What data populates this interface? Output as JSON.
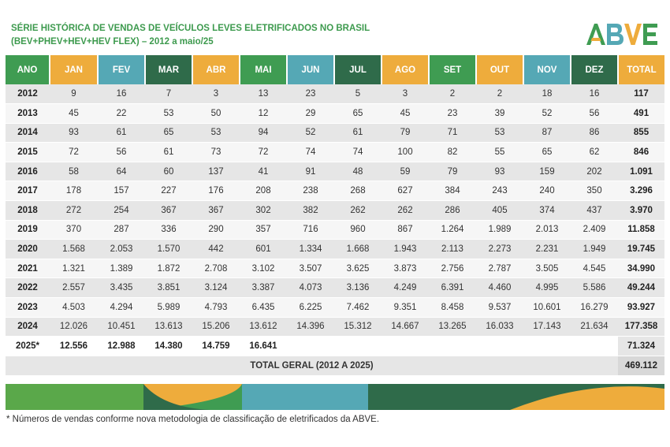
{
  "title": {
    "line1": "SÉRIE HISTÓRICA DE VENDAS DE VEÍCULOS LEVES ELETRIFICADOS NO BRASIL",
    "line2": "(BEV+PHEV+HEV+HEV FLEX) – 2012 a maio/25"
  },
  "logo": {
    "text": "ABVE"
  },
  "colors": {
    "green": "#3f9c52",
    "orange": "#eeac3c",
    "blue": "#55a8b5",
    "dark_green": "#2f6b4a",
    "title_green": "#3d9a4e"
  },
  "header": {
    "ano": "ANO",
    "months": [
      "JAN",
      "FEV",
      "MAR",
      "ABR",
      "MAI",
      "JUN",
      "JUL",
      "AGO",
      "SET",
      "OUT",
      "NOV",
      "DEZ"
    ],
    "total": "TOTAL"
  },
  "rows": [
    {
      "year": "2012",
      "values": [
        "9",
        "16",
        "7",
        "3",
        "13",
        "23",
        "5",
        "3",
        "2",
        "2",
        "18",
        "16"
      ],
      "total": "117"
    },
    {
      "year": "2013",
      "values": [
        "45",
        "22",
        "53",
        "50",
        "12",
        "29",
        "65",
        "45",
        "23",
        "39",
        "52",
        "56"
      ],
      "total": "491"
    },
    {
      "year": "2014",
      "values": [
        "93",
        "61",
        "65",
        "53",
        "94",
        "52",
        "61",
        "79",
        "71",
        "53",
        "87",
        "86"
      ],
      "total": "855"
    },
    {
      "year": "2015",
      "values": [
        "72",
        "56",
        "61",
        "73",
        "72",
        "74",
        "74",
        "100",
        "82",
        "55",
        "65",
        "62"
      ],
      "total": "846"
    },
    {
      "year": "2016",
      "values": [
        "58",
        "64",
        "60",
        "137",
        "41",
        "91",
        "48",
        "59",
        "79",
        "93",
        "159",
        "202"
      ],
      "total": "1.091"
    },
    {
      "year": "2017",
      "values": [
        "178",
        "157",
        "227",
        "176",
        "208",
        "238",
        "268",
        "627",
        "384",
        "243",
        "240",
        "350"
      ],
      "total": "3.296"
    },
    {
      "year": "2018",
      "values": [
        "272",
        "254",
        "367",
        "367",
        "302",
        "382",
        "262",
        "262",
        "286",
        "405",
        "374",
        "437"
      ],
      "total": "3.970"
    },
    {
      "year": "2019",
      "values": [
        "370",
        "287",
        "336",
        "290",
        "357",
        "716",
        "960",
        "867",
        "1.264",
        "1.989",
        "2.013",
        "2.409"
      ],
      "total": "11.858"
    },
    {
      "year": "2020",
      "values": [
        "1.568",
        "2.053",
        "1.570",
        "442",
        "601",
        "1.334",
        "1.668",
        "1.943",
        "2.113",
        "2.273",
        "2.231",
        "1.949"
      ],
      "total": "19.745"
    },
    {
      "year": "2021",
      "values": [
        "1.321",
        "1.389",
        "1.872",
        "2.708",
        "3.102",
        "3.507",
        "3.625",
        "3.873",
        "2.756",
        "2.787",
        "3.505",
        "4.545"
      ],
      "total": "34.990"
    },
    {
      "year": "2022",
      "values": [
        "2.557",
        "3.435",
        "3.851",
        "3.124",
        "3.387",
        "4.073",
        "3.136",
        "4.249",
        "6.391",
        "4.460",
        "4.995",
        "5.586"
      ],
      "total": "49.244"
    },
    {
      "year": "2023",
      "values": [
        "4.503",
        "4.294",
        "5.989",
        "4.793",
        "6.435",
        "6.225",
        "7.462",
        "9.351",
        "8.458",
        "9.537",
        "10.601",
        "16.279"
      ],
      "total": "93.927"
    },
    {
      "year": "2024",
      "values": [
        "12.026",
        "10.451",
        "13.613",
        "15.206",
        "13.612",
        "14.396",
        "15.312",
        "14.667",
        "13.265",
        "16.033",
        "17.143",
        "21.634"
      ],
      "total": "177.358"
    },
    {
      "year": "2025*",
      "values": [
        "12.556",
        "12.988",
        "14.380",
        "14.759",
        "16.641",
        "",
        "",
        "",
        "",
        "",
        "",
        ""
      ],
      "total": "71.324"
    }
  ],
  "grand_total": {
    "label": "TOTAL GERAL (2012 A 2025)",
    "value": "469.112"
  },
  "footnote": "* Números de vendas conforme nova metodologia de classificação de eletrificados da ABVE."
}
